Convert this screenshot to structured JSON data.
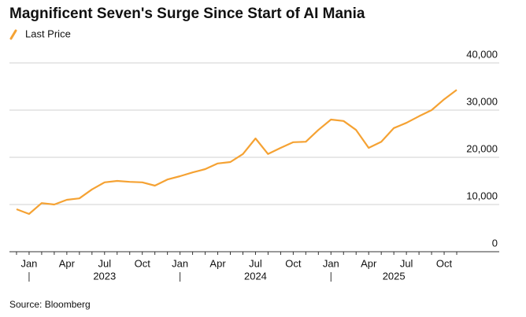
{
  "chart_data": {
    "type": "line",
    "title": "Magnificent Seven's Surge Since Start of AI Mania",
    "source": "Source: Bloomberg",
    "x": [
      "2022-12",
      "2023-01",
      "2023-02",
      "2023-03",
      "2023-04",
      "2023-05",
      "2023-06",
      "2023-07",
      "2023-08",
      "2023-09",
      "2023-10",
      "2023-11",
      "2023-12",
      "2024-01",
      "2024-02",
      "2024-03",
      "2024-04",
      "2024-05",
      "2024-06",
      "2024-07",
      "2024-08",
      "2024-09",
      "2024-10",
      "2024-11",
      "2024-12",
      "2025-01",
      "2025-02",
      "2025-03",
      "2025-04",
      "2025-05",
      "2025-06",
      "2025-07",
      "2025-08",
      "2025-09",
      "2025-10",
      "2025-11"
    ],
    "series": [
      {
        "name": "Last Price",
        "color": "#f5a233",
        "values": [
          9000,
          8000,
          10300,
          10000,
          11000,
          11300,
          13200,
          14700,
          15000,
          14800,
          14700,
          14000,
          15300,
          16000,
          16800,
          17500,
          18700,
          19000,
          20700,
          24000,
          20700,
          22000,
          23200,
          23300,
          25800,
          28000,
          27700,
          25800,
          22000,
          23300,
          26200,
          27300,
          28700,
          30000,
          32300,
          34300
        ]
      }
    ],
    "xlim": [
      "2022-11",
      "2025-12"
    ],
    "xticks": [
      {
        "value": "2023-01",
        "label": "Jan"
      },
      {
        "value": "2023-04",
        "label": "Apr"
      },
      {
        "value": "2023-07",
        "label": "Jul"
      },
      {
        "value": "2023-10",
        "label": "Oct"
      },
      {
        "value": "2024-01",
        "label": "Jan"
      },
      {
        "value": "2024-04",
        "label": "Apr"
      },
      {
        "value": "2024-07",
        "label": "Jul"
      },
      {
        "value": "2024-10",
        "label": "Oct"
      },
      {
        "value": "2025-01",
        "label": "Jan"
      },
      {
        "value": "2025-04",
        "label": "Apr"
      },
      {
        "value": "2025-07",
        "label": "Jul"
      },
      {
        "value": "2025-10",
        "label": "Oct"
      }
    ],
    "year_ticks": [
      {
        "value": "2023-07",
        "label": "2023"
      },
      {
        "value": "2024-07",
        "label": "2024"
      },
      {
        "value": "2025-06",
        "label": "2025"
      }
    ],
    "ylim": [
      0,
      40000
    ],
    "yticks": [
      0,
      {
        "value": 10000,
        "label": "10,000"
      },
      {
        "value": 20000,
        "label": "20,000"
      },
      {
        "value": 30000,
        "label": "30,000"
      },
      {
        "value": 40000,
        "label": "40,000"
      }
    ],
    "grid": true
  }
}
